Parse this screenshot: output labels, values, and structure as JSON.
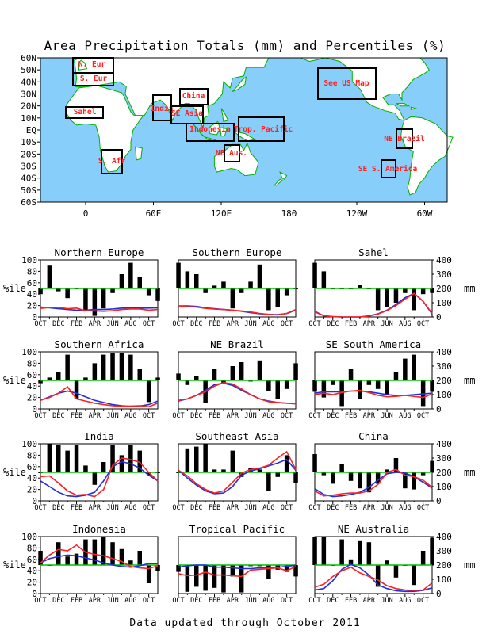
{
  "title": "Area Precipitation Totals (mm) and Percentiles (%)",
  "footer": "Data updated through October 2011",
  "colors": {
    "ocean": "#87cefa",
    "land": "#ffffff",
    "coast": "#00b000",
    "region_label": "#ff2020",
    "bar": "#000000",
    "fifty_line": "#00c000",
    "observed_line": "#ff2020",
    "normal_line": "#2030e0"
  },
  "map": {
    "lat_labels": [
      "60N",
      "50N",
      "40N",
      "30N",
      "20N",
      "10N",
      "EQ",
      "10S",
      "20S",
      "30S",
      "40S",
      "50S",
      "60S"
    ],
    "lon_labels": [
      "0",
      "60E",
      "120E",
      "180",
      "120W",
      "60W",
      "0"
    ],
    "regions": [
      "N. Eur",
      "S. Eur",
      "Sahel",
      "S. Afr",
      "India",
      "China",
      "SE Asia",
      "Indonesia",
      "Trop. Pacific",
      "NE Aus.",
      "See US Map",
      "NE Brazil",
      "SE S. America"
    ]
  },
  "axis_labels": {
    "left": "%ile",
    "right": "mm"
  },
  "chart_data": {
    "type": "bar",
    "month_ticks": [
      "OCT",
      "DEC",
      "FEB",
      "APR",
      "JUN",
      "AUG",
      "OCT"
    ],
    "left_axis": {
      "label": "%ile",
      "ticks": [
        0,
        20,
        40,
        60,
        80,
        100
      ],
      "ylim": [
        0,
        100
      ]
    },
    "right_axis": {
      "label": "mm",
      "ticks": [
        0,
        100,
        200,
        300,
        400
      ],
      "ylim": [
        0,
        400
      ]
    },
    "panels": [
      {
        "title": "Northern Europe",
        "percentile": [
          40,
          90,
          45,
          33,
          50,
          12,
          2,
          15,
          42,
          75,
          95,
          70,
          38,
          28
        ],
        "observed_mm": [
          60,
          66,
          68,
          58,
          62,
          44,
          42,
          40,
          44,
          52,
          56,
          56,
          48,
          52
        ],
        "normal_mm": [
          70,
          64,
          58,
          52,
          48,
          48,
          52,
          52,
          56,
          62,
          64,
          62,
          62,
          64
        ]
      },
      {
        "title": "Southern Europe",
        "percentile": [
          95,
          80,
          75,
          42,
          55,
          62,
          15,
          42,
          62,
          92,
          12,
          18,
          38,
          50
        ],
        "observed_mm": [
          78,
          72,
          70,
          60,
          55,
          52,
          48,
          42,
          35,
          25,
          18,
          14,
          25,
          52
        ],
        "normal_mm": [
          78,
          78,
          74,
          64,
          58,
          52,
          48,
          40,
          30,
          22,
          18,
          16,
          24,
          48
        ]
      },
      {
        "title": "Sahel",
        "percentile": [
          95,
          80,
          50,
          50,
          50,
          56,
          50,
          12,
          18,
          25,
          42,
          12,
          40,
          42
        ],
        "observed_mm": [
          35,
          8,
          2,
          0,
          0,
          0,
          6,
          20,
          45,
          80,
          125,
          165,
          110,
          25
        ],
        "normal_mm": [
          40,
          8,
          2,
          0,
          0,
          0,
          8,
          22,
          48,
          88,
          135,
          165,
          110,
          20
        ]
      },
      {
        "title": "Southern Africa",
        "percentile": [
          45,
          55,
          65,
          95,
          18,
          55,
          80,
          95,
          98,
          98,
          95,
          70,
          12,
          55
        ],
        "observed_mm": [
          60,
          80,
          110,
          155,
          70,
          55,
          40,
          30,
          22,
          18,
          20,
          22,
          15,
          40
        ],
        "normal_mm": [
          60,
          85,
          110,
          125,
          110,
          85,
          60,
          45,
          30,
          22,
          18,
          20,
          30,
          55
        ],
        "extra_percentile": [
          100
        ]
      },
      {
        "title": "NE Brazil",
        "percentile": [
          62,
          42,
          58,
          10,
          70,
          45,
          75,
          82,
          48,
          85,
          32,
          18,
          35,
          80
        ],
        "observed_mm": [
          60,
          70,
          95,
          120,
          160,
          185,
          175,
          140,
          100,
          70,
          50,
          45,
          40,
          35
        ],
        "normal_mm": [
          55,
          70,
          95,
          130,
          170,
          180,
          165,
          130,
          100,
          70,
          55,
          45,
          40,
          38
        ]
      },
      {
        "title": "SE South America",
        "percentile": [
          30,
          20,
          42,
          5,
          70,
          18,
          42,
          35,
          25,
          65,
          88,
          95,
          5,
          30
        ],
        "observed_mm": [
          100,
          110,
          100,
          115,
          125,
          130,
          115,
          95,
          85,
          88,
          95,
          88,
          80,
          105
        ],
        "normal_mm": [
          110,
          120,
          120,
          120,
          125,
          125,
          120,
          110,
          100,
          95,
          95,
          100,
          105,
          110
        ]
      },
      {
        "title": "India",
        "percentile": [
          50,
          100,
          98,
          88,
          98,
          62,
          28,
          68,
          98,
          80,
          98,
          88,
          45,
          50
        ],
        "observed_mm": [
          170,
          175,
          125,
          70,
          40,
          45,
          30,
          80,
          250,
          300,
          290,
          270,
          200,
          140
        ],
        "normal_mm": [
          140,
          100,
          60,
          35,
          30,
          40,
          60,
          140,
          240,
          275,
          260,
          230,
          180,
          140
        ]
      },
      {
        "title": "Southeast Asia",
        "percentile": [
          50,
          92,
          95,
          100,
          55,
          55,
          88,
          42,
          58,
          55,
          18,
          42,
          80,
          32
        ],
        "observed_mm": [
          215,
          175,
          120,
          80,
          55,
          70,
          130,
          195,
          220,
          230,
          250,
          300,
          345,
          220
        ],
        "normal_mm": [
          215,
          160,
          110,
          70,
          50,
          55,
          100,
          180,
          210,
          225,
          245,
          265,
          290,
          215
        ]
      },
      {
        "title": "China",
        "percentile": [
          82,
          45,
          30,
          65,
          35,
          22,
          15,
          30,
          55,
          75,
          22,
          20,
          45,
          70
        ],
        "observed_mm": [
          70,
          35,
          40,
          50,
          55,
          55,
          70,
          115,
          200,
          220,
          180,
          170,
          145,
          95
        ],
        "normal_mm": [
          85,
          45,
          30,
          35,
          45,
          60,
          95,
          145,
          190,
          200,
          195,
          170,
          130,
          90
        ]
      },
      {
        "title": "Indonesia",
        "percentile": [
          75,
          50,
          90,
          65,
          70,
          95,
          95,
          100,
          90,
          78,
          58,
          75,
          18,
          40
        ],
        "observed_mm": [
          215,
          270,
          310,
          300,
          340,
          290,
          275,
          265,
          245,
          225,
          190,
          180,
          175,
          195
        ],
        "normal_mm": [
          215,
          245,
          260,
          270,
          265,
          250,
          235,
          215,
          200,
          190,
          185,
          195,
          210,
          210
        ]
      },
      {
        "title": "Tropical Pacific",
        "percentile": [
          38,
          3,
          12,
          5,
          10,
          2,
          30,
          2,
          48,
          48,
          25,
          42,
          38,
          30
        ],
        "observed_mm": [
          140,
          125,
          130,
          150,
          130,
          130,
          125,
          120,
          165,
          170,
          175,
          180,
          160,
          190
        ],
        "normal_mm": [
          185,
          195,
          200,
          200,
          185,
          185,
          180,
          175,
          175,
          180,
          180,
          185,
          190,
          200
        ]
      },
      {
        "title": "NE Australia",
        "percentile": [
          100,
          100,
          50,
          95,
          60,
          92,
          90,
          12,
          58,
          28,
          50,
          15,
          75,
          98
        ],
        "observed_mm": [
          45,
          65,
          120,
          160,
          185,
          145,
          120,
          95,
          55,
          35,
          25,
          22,
          25,
          75
        ],
        "normal_mm": [
          25,
          35,
          90,
          170,
          205,
          180,
          130,
          60,
          35,
          20,
          15,
          15,
          22,
          40
        ]
      }
    ]
  }
}
